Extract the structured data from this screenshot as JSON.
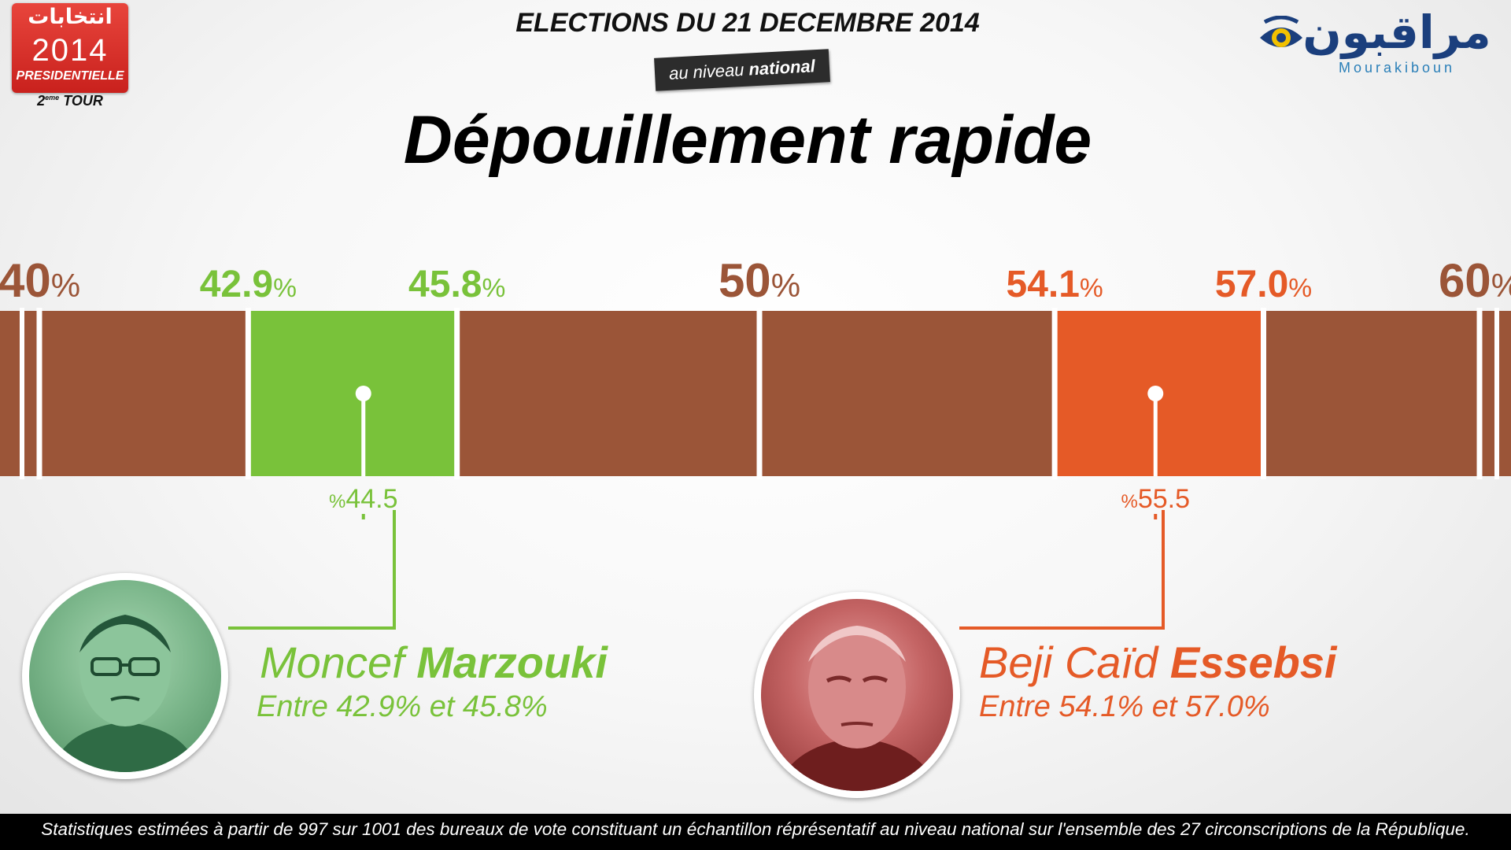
{
  "badge": {
    "arabic": "انتخابات",
    "year": "2014",
    "label": "PRESIDENTIELLE",
    "round_num": "2",
    "round_sup": "eme",
    "round_word": "TOUR"
  },
  "logo": {
    "arabic": "مراقبون",
    "latin": "Mourakiboun"
  },
  "header": {
    "headline": "ELECTIONS DU 21 DECEMBRE 2014",
    "level_prefix": "au niveau ",
    "level_bold": "national",
    "title": "Dépouillement rapide"
  },
  "colors": {
    "bar": "#9b5538",
    "green": "#79c23a",
    "green_text": "#79c23a",
    "orange": "#e55a27",
    "axis_text": "#9b5538"
  },
  "chart_data": {
    "type": "bar",
    "orientation": "horizontal",
    "xlim": [
      40,
      60
    ],
    "ticks": [
      {
        "value": 40,
        "label": "40",
        "kind": "axis"
      },
      {
        "value": 42.9,
        "label": "42.9",
        "kind": "marzouki"
      },
      {
        "value": 45.8,
        "label": "45.8",
        "kind": "marzouki"
      },
      {
        "value": 50,
        "label": "50",
        "kind": "axis"
      },
      {
        "value": 54.1,
        "label": "54.1",
        "kind": "essebsi"
      },
      {
        "value": 57.0,
        "label": "57.0",
        "kind": "essebsi"
      },
      {
        "value": 60,
        "label": "60",
        "kind": "axis"
      }
    ],
    "series": [
      {
        "name": "Moncef Marzouki",
        "estimate": 44.5,
        "estimate_label": "44.5",
        "range": [
          42.9,
          45.8
        ],
        "color": "#79c23a"
      },
      {
        "name": "Beji Caïd Essebsi",
        "estimate": 55.5,
        "estimate_label": "55.5",
        "range": [
          54.1,
          57.0
        ],
        "color": "#e55a27"
      }
    ],
    "percent_sign": "%"
  },
  "candidates": {
    "marzouki": {
      "first": "Moncef ",
      "last": "Marzouki",
      "range_text": "Entre 42.9% et 45.8%"
    },
    "essebsi": {
      "first": "Beji Caïd ",
      "last": "Essebsi",
      "range_text": "Entre 54.1% et 57.0%"
    }
  },
  "footer": "Statistiques estimées à partir de 997 sur 1001 des bureaux de vote constituant un échantillon réprésentatif au niveau national sur l'ensemble des 27 circonscriptions de la République."
}
